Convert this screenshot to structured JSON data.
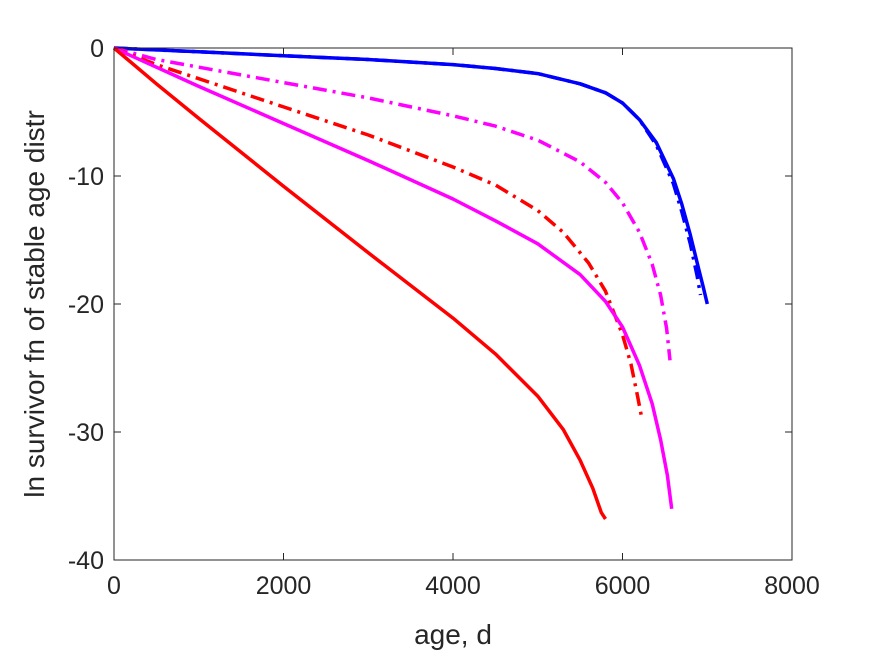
{
  "chart_data": {
    "type": "line",
    "title": "",
    "xlabel": "age, d",
    "ylabel": "ln survivor fn of stable age distr",
    "xlim": [
      0,
      8000
    ],
    "ylim": [
      -40,
      0
    ],
    "x_ticks": [
      0,
      2000,
      4000,
      6000,
      8000
    ],
    "y_ticks": [
      0,
      -10,
      -20,
      -30,
      -40
    ],
    "x_tick_labels": [
      "0",
      "2000",
      "4000",
      "6000",
      "8000"
    ],
    "y_tick_labels": [
      "0",
      "-10",
      "-20",
      "-30",
      "-40"
    ],
    "grid": false,
    "legend": "none",
    "axis_color": "#262626",
    "series": [
      {
        "color": "#0000ff",
        "style": "solid",
        "x": [
          0,
          1000,
          2000,
          3000,
          4000,
          4500,
          5000,
          5500,
          5800,
          6000,
          6200,
          6400,
          6600,
          6700,
          6800,
          6900,
          6950,
          7000
        ],
        "y": [
          0,
          -0.3,
          -0.6,
          -0.9,
          -1.3,
          -1.6,
          -2.0,
          -2.8,
          -3.5,
          -4.3,
          -5.6,
          -7.4,
          -10.2,
          -12.2,
          -14.6,
          -17.3,
          -18.6,
          -20.0
        ]
      },
      {
        "color": "#0000ff",
        "style": "dashdot",
        "x": [
          0,
          1000,
          2000,
          3000,
          4000,
          4500,
          5000,
          5500,
          5800,
          6000,
          6200,
          6400,
          6600,
          6700,
          6800,
          6880,
          6920
        ],
        "y": [
          0,
          -0.3,
          -0.6,
          -0.9,
          -1.3,
          -1.6,
          -2.0,
          -2.8,
          -3.5,
          -4.3,
          -5.6,
          -7.6,
          -10.6,
          -12.8,
          -15.3,
          -17.8,
          -19.3
        ]
      },
      {
        "color": "#ff00ff",
        "style": "dashdot",
        "x": [
          0,
          500,
          1000,
          2000,
          3000,
          4000,
          4500,
          5000,
          5500,
          5800,
          6000,
          6200,
          6350,
          6450,
          6520,
          6560
        ],
        "y": [
          0,
          -0.9,
          -1.5,
          -2.7,
          -3.9,
          -5.3,
          -6.1,
          -7.2,
          -8.9,
          -10.5,
          -12.1,
          -14.4,
          -16.9,
          -19.3,
          -21.9,
          -24.4
        ]
      },
      {
        "color": "#ff0000",
        "style": "dashdot",
        "x": [
          0,
          500,
          1000,
          2000,
          3000,
          4000,
          4500,
          5000,
          5300,
          5600,
          5800,
          6000,
          6100,
          6180,
          6230
        ],
        "y": [
          0,
          -1.3,
          -2.4,
          -4.6,
          -6.8,
          -9.3,
          -10.7,
          -12.7,
          -14.4,
          -16.8,
          -19.0,
          -22.4,
          -24.7,
          -27.3,
          -29.0
        ]
      },
      {
        "color": "#ff00ff",
        "style": "solid",
        "x": [
          0,
          1000,
          2000,
          3000,
          4000,
          4500,
          5000,
          5500,
          5800,
          6000,
          6200,
          6350,
          6450,
          6530,
          6580
        ],
        "y": [
          0,
          -3.0,
          -5.9,
          -8.8,
          -11.8,
          -13.5,
          -15.3,
          -17.7,
          -19.8,
          -21.8,
          -24.8,
          -27.8,
          -30.6,
          -33.4,
          -36.0
        ]
      },
      {
        "color": "#ff0000",
        "style": "solid",
        "x": [
          0,
          500,
          1000,
          2000,
          3000,
          4000,
          4500,
          5000,
          5300,
          5500,
          5650,
          5750,
          5800
        ],
        "y": [
          0,
          -2.8,
          -5.5,
          -10.8,
          -16.0,
          -21.1,
          -23.9,
          -27.2,
          -29.8,
          -32.2,
          -34.4,
          -36.3,
          -36.8
        ]
      }
    ]
  }
}
